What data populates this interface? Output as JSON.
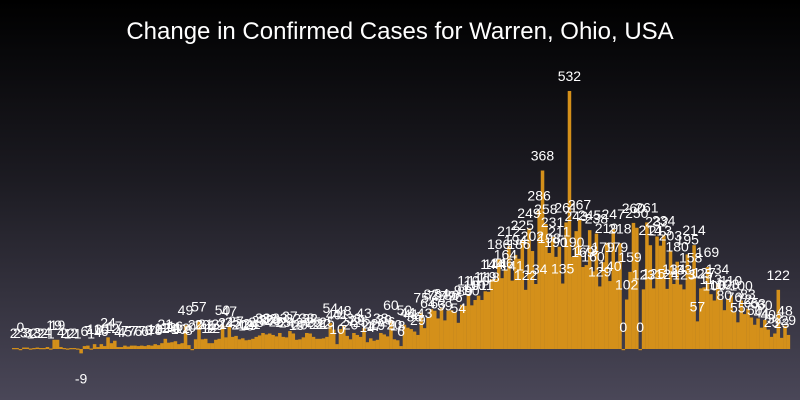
{
  "chart_data": {
    "type": "bar",
    "title": "Change in Confirmed Cases for Warren, Ohio, USA",
    "xlabel": "",
    "ylabel": "",
    "ylim": [
      -30,
      640
    ],
    "grid": false,
    "legend": "none",
    "colors": {
      "bar": "#d4901a",
      "label": "#ffffff",
      "title": "#ffffff"
    },
    "values": [
      2,
      2,
      0,
      3,
      3,
      1,
      2,
      3,
      2,
      2,
      4,
      1,
      19,
      19,
      4,
      2,
      1,
      2,
      2,
      1,
      -9,
      6,
      7,
      1,
      10,
      4,
      10,
      6,
      24,
      12,
      17,
      4,
      4,
      7,
      5,
      7,
      7,
      6,
      7,
      6,
      8,
      7,
      10,
      8,
      12,
      21,
      13,
      14,
      16,
      10,
      12,
      49,
      8,
      0,
      20,
      57,
      20,
      21,
      12,
      12,
      19,
      21,
      50,
      24,
      47,
      25,
      27,
      20,
      22,
      18,
      19,
      21,
      25,
      28,
      33,
      30,
      32,
      29,
      26,
      33,
      25,
      24,
      37,
      32,
      19,
      20,
      24,
      33,
      32,
      25,
      21,
      21,
      22,
      25,
      54,
      40,
      10,
      41,
      48,
      27,
      20,
      33,
      29,
      25,
      43,
      14,
      22,
      17,
      19,
      33,
      30,
      26,
      60,
      20,
      18,
      6,
      50,
      44,
      41,
      36,
      29,
      75,
      43,
      64,
      82,
      79,
      63,
      84,
      59,
      79,
      80,
      76,
      54,
      91,
      89,
      110,
      90,
      101,
      110,
      101,
      119,
      118,
      144,
      144,
      186,
      146,
      164,
      212,
      141,
      194,
      186,
      225,
      122,
      249,
      202,
      134,
      286,
      368,
      258,
      198,
      231,
      190,
      211,
      135,
      261,
      532,
      190,
      243,
      267,
      169,
      173,
      245,
      160,
      238,
      129,
      179,
      219,
      140,
      247,
      179,
      218,
      0,
      102,
      159,
      260,
      250,
      0,
      123,
      261,
      214,
      125,
      232,
      213,
      234,
      124,
      203,
      134,
      180,
      133,
      123,
      195,
      158,
      214,
      57,
      125,
      127,
      169,
      113,
      100,
      134,
      102,
      80,
      103,
      110,
      76,
      55,
      100,
      72,
      83,
      65,
      50,
      63,
      44,
      60,
      40,
      25,
      32,
      122,
      23,
      48,
      29
    ]
  }
}
